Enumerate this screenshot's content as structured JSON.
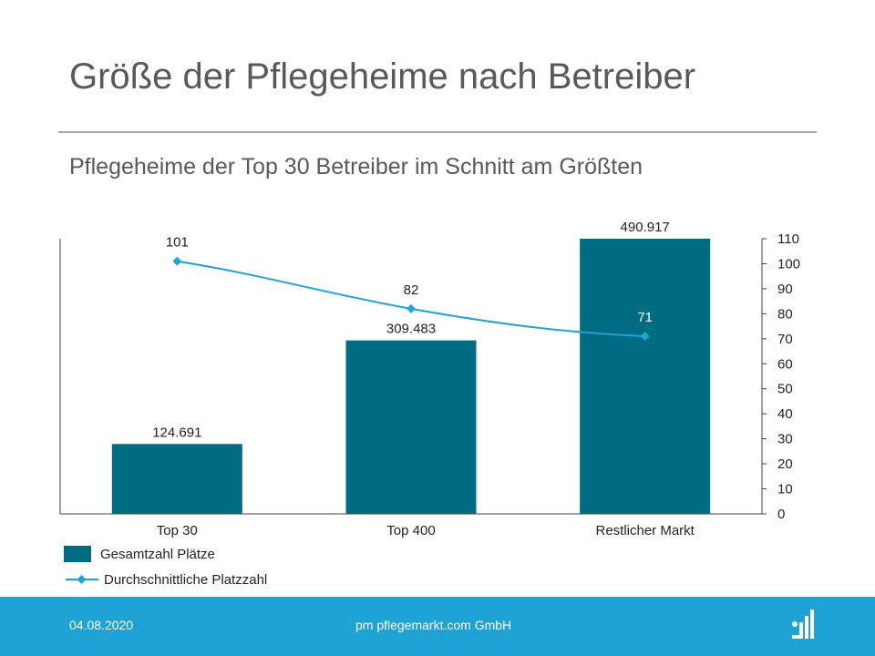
{
  "slide": {
    "title": "Größe der Pflegeheime nach Betreiber",
    "subtitle": "Pflegeheime der Top 30 Betreiber im Schnitt am Größten"
  },
  "chart_data": {
    "type": "bar",
    "categories": [
      "Top 30",
      "Top 400",
      "Restlicher Markt"
    ],
    "series": [
      {
        "name": "Gesamtzahl Plätze",
        "type": "bar",
        "axis": "left",
        "values": [
          124691,
          309483,
          490917
        ],
        "labels": [
          "124.691",
          "309.483",
          "490.917"
        ],
        "color": "#006c84"
      },
      {
        "name": "Durchschnittliche Platzzahl",
        "type": "line",
        "axis": "right",
        "values": [
          101,
          82,
          71
        ],
        "labels": [
          "101",
          "82",
          "71"
        ],
        "color": "#1fa3d4"
      }
    ],
    "y_left": {
      "min": 0,
      "max": 490917,
      "tick_labels_shown": false
    },
    "y_right": {
      "min": 0,
      "max": 110,
      "step": 10,
      "ticks": [
        "0",
        "10",
        "20",
        "30",
        "40",
        "50",
        "60",
        "70",
        "80",
        "90",
        "100",
        "110"
      ]
    },
    "legend": "bottom-left",
    "grid": false
  },
  "footer": {
    "date": "04.08.2020",
    "company": "pm pflegemarkt.com GmbH",
    "background": "#1fa3d4",
    "logo_icon": "pflegemarkt-logo-icon"
  }
}
